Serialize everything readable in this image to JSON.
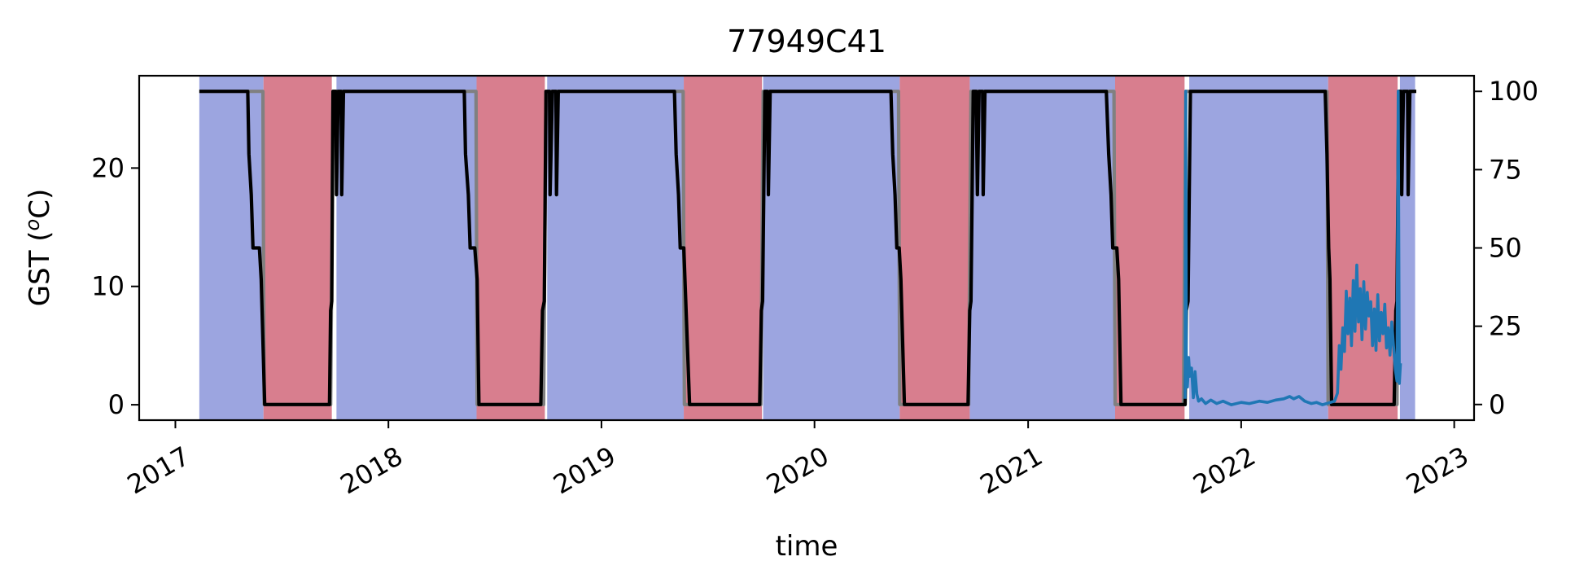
{
  "chart_data": {
    "type": "line",
    "title": "77949C41",
    "xlabel": "time",
    "ylabel_left": "GST (",
    "ylabel_left_super": "o",
    "ylabel_left_tail": "C)",
    "ylabel_right": "",
    "x_ticks": [
      "2017",
      "2018",
      "2019",
      "2020",
      "2021",
      "2022",
      "2023"
    ],
    "x_tick_dates": [
      "2017-01-01",
      "2018-01-01",
      "2019-01-01",
      "2020-01-01",
      "2021-01-01",
      "2022-01-01",
      "2023-01-01"
    ],
    "xlim": [
      "2016-10-31",
      "2023-02-04"
    ],
    "y_left_ticks": [
      "0",
      "10",
      "20"
    ],
    "y_left_tick_values": [
      0,
      10,
      20
    ],
    "ylim_left": [
      -1.3,
      27.8
    ],
    "y_right_ticks": [
      "0",
      "25",
      "50",
      "75",
      "100"
    ],
    "y_right_tick_values": [
      0,
      25,
      50,
      75,
      100
    ],
    "ylim_right": [
      -5,
      105
    ],
    "grid": false,
    "colors": {
      "season_blue": "#9ca5e0",
      "season_red": "#d87e8e",
      "black_series": "#000000",
      "grey_series": "#808080",
      "blue_series": "#1f77b4"
    },
    "shaded_periods": [
      {
        "start": "2017-02-11",
        "end": "2017-06-01",
        "kind": "blue"
      },
      {
        "start": "2017-06-01",
        "end": "2017-09-26",
        "kind": "red"
      },
      {
        "start": "2017-10-04",
        "end": "2018-06-01",
        "kind": "blue"
      },
      {
        "start": "2018-06-01",
        "end": "2018-09-26",
        "kind": "red"
      },
      {
        "start": "2018-09-30",
        "end": "2019-05-22",
        "kind": "blue"
      },
      {
        "start": "2019-05-22",
        "end": "2019-10-03",
        "kind": "red"
      },
      {
        "start": "2019-10-05",
        "end": "2020-05-26",
        "kind": "blue"
      },
      {
        "start": "2020-05-26",
        "end": "2020-09-23",
        "kind": "red"
      },
      {
        "start": "2020-09-23",
        "end": "2021-05-30",
        "kind": "blue"
      },
      {
        "start": "2021-05-30",
        "end": "2021-09-26",
        "kind": "red"
      },
      {
        "start": "2021-10-04",
        "end": "2022-05-30",
        "kind": "blue"
      },
      {
        "start": "2022-05-30",
        "end": "2022-09-26",
        "kind": "red"
      },
      {
        "start": "2022-09-30",
        "end": "2022-10-26",
        "kind": "blue"
      }
    ],
    "series": [
      {
        "axis": "right",
        "color": "#808080",
        "points": [
          [
            "2017-02-11",
            100
          ],
          [
            "2017-05-31",
            100
          ],
          [
            "2017-06-02",
            0
          ],
          [
            "2017-09-24",
            0
          ],
          [
            "2017-09-28",
            100
          ],
          [
            "2018-05-31",
            100
          ],
          [
            "2018-06-02",
            0
          ],
          [
            "2018-09-24",
            0
          ],
          [
            "2018-09-28",
            100
          ],
          [
            "2019-05-21",
            100
          ],
          [
            "2019-05-23",
            0
          ],
          [
            "2019-10-01",
            0
          ],
          [
            "2019-10-05",
            100
          ],
          [
            "2020-05-24",
            100
          ],
          [
            "2020-05-26",
            0
          ],
          [
            "2020-09-21",
            0
          ],
          [
            "2020-09-25",
            100
          ],
          [
            "2021-05-28",
            100
          ],
          [
            "2021-05-30",
            0
          ],
          [
            "2021-09-24",
            0
          ],
          [
            "2021-09-28",
            100
          ],
          [
            "2022-05-28",
            100
          ],
          [
            "2022-05-30",
            0
          ],
          [
            "2022-09-25",
            0
          ],
          [
            "2022-09-28",
            100
          ],
          [
            "2022-10-26",
            100
          ]
        ]
      },
      {
        "axis": "right",
        "color": "#000000",
        "points": [
          [
            "2017-02-11",
            100
          ],
          [
            "2017-05-05",
            100
          ],
          [
            "2017-05-07",
            80
          ],
          [
            "2017-05-11",
            67
          ],
          [
            "2017-05-14",
            50
          ],
          [
            "2017-05-25",
            50
          ],
          [
            "2017-05-28",
            40
          ],
          [
            "2017-06-03",
            0
          ],
          [
            "2017-09-22",
            0
          ],
          [
            "2017-09-24",
            30
          ],
          [
            "2017-09-26",
            33
          ],
          [
            "2017-09-28",
            100
          ],
          [
            "2017-10-03",
            100
          ],
          [
            "2017-10-04",
            67
          ],
          [
            "2017-10-07",
            100
          ],
          [
            "2017-10-12",
            100
          ],
          [
            "2017-10-13",
            67
          ],
          [
            "2017-10-16",
            100
          ],
          [
            "2018-05-11",
            100
          ],
          [
            "2018-05-13",
            80
          ],
          [
            "2018-05-18",
            67
          ],
          [
            "2018-05-21",
            50
          ],
          [
            "2018-05-29",
            50
          ],
          [
            "2018-06-02",
            40
          ],
          [
            "2018-06-05",
            0
          ],
          [
            "2018-09-19",
            0
          ],
          [
            "2018-09-22",
            30
          ],
          [
            "2018-09-25",
            33
          ],
          [
            "2018-09-28",
            100
          ],
          [
            "2018-10-04",
            100
          ],
          [
            "2018-10-05",
            67
          ],
          [
            "2018-10-09",
            100
          ],
          [
            "2018-10-15",
            100
          ],
          [
            "2018-10-16",
            67
          ],
          [
            "2018-10-19",
            100
          ],
          [
            "2019-05-06",
            100
          ],
          [
            "2019-05-09",
            80
          ],
          [
            "2019-05-13",
            67
          ],
          [
            "2019-05-16",
            50
          ],
          [
            "2019-05-22",
            50
          ],
          [
            "2019-05-24",
            40
          ],
          [
            "2019-06-01",
            0
          ],
          [
            "2019-09-29",
            0
          ],
          [
            "2019-10-02",
            30
          ],
          [
            "2019-10-04",
            33
          ],
          [
            "2019-10-08",
            100
          ],
          [
            "2019-10-12",
            100
          ],
          [
            "2019-10-14",
            67
          ],
          [
            "2019-10-17",
            100
          ],
          [
            "2020-05-11",
            100
          ],
          [
            "2020-05-14",
            80
          ],
          [
            "2020-05-18",
            67
          ],
          [
            "2020-05-21",
            50
          ],
          [
            "2020-05-25",
            50
          ],
          [
            "2020-05-28",
            40
          ],
          [
            "2020-06-03",
            0
          ],
          [
            "2020-09-20",
            0
          ],
          [
            "2020-09-23",
            30
          ],
          [
            "2020-09-25",
            33
          ],
          [
            "2020-09-29",
            100
          ],
          [
            "2020-10-04",
            100
          ],
          [
            "2020-10-06",
            67
          ],
          [
            "2020-10-09",
            100
          ],
          [
            "2020-10-15",
            100
          ],
          [
            "2020-10-16",
            67
          ],
          [
            "2020-10-19",
            100
          ],
          [
            "2021-05-15",
            100
          ],
          [
            "2021-05-19",
            80
          ],
          [
            "2021-05-23",
            67
          ],
          [
            "2021-05-26",
            50
          ],
          [
            "2021-06-02",
            50
          ],
          [
            "2021-06-05",
            40
          ],
          [
            "2021-06-09",
            0
          ],
          [
            "2021-09-27",
            0
          ],
          [
            "2021-09-29",
            30
          ],
          [
            "2021-10-02",
            33
          ],
          [
            "2021-10-06",
            100
          ],
          [
            "2022-05-25",
            100
          ],
          [
            "2022-05-28",
            80
          ],
          [
            "2022-05-31",
            50
          ],
          [
            "2022-06-02",
            40
          ],
          [
            "2022-06-05",
            0
          ],
          [
            "2022-09-20",
            0
          ],
          [
            "2022-09-23",
            30
          ],
          [
            "2022-09-25",
            33
          ],
          [
            "2022-09-28",
            100
          ],
          [
            "2022-10-02",
            100
          ],
          [
            "2022-10-03",
            67
          ],
          [
            "2022-10-06",
            100
          ],
          [
            "2022-10-13",
            100
          ],
          [
            "2022-10-14",
            67
          ],
          [
            "2022-10-17",
            100
          ],
          [
            "2022-10-28",
            100
          ]
        ]
      },
      {
        "axis": "left",
        "color": "#1f77b4",
        "points": [
          [
            "2021-09-27",
            0.5
          ],
          [
            "2021-09-28",
            26.5
          ],
          [
            "2021-09-29",
            4.2
          ],
          [
            "2021-10-01",
            1.5
          ],
          [
            "2021-10-03",
            4.0
          ],
          [
            "2021-10-05",
            2.4
          ],
          [
            "2021-10-08",
            3.1
          ],
          [
            "2021-10-11",
            0.6
          ],
          [
            "2021-10-14",
            2.8
          ],
          [
            "2021-10-17",
            0.9
          ],
          [
            "2021-10-20",
            0.3
          ],
          [
            "2021-10-25",
            0.5
          ],
          [
            "2021-11-01",
            0.1
          ],
          [
            "2021-11-10",
            0.4
          ],
          [
            "2021-11-20",
            0.1
          ],
          [
            "2021-12-01",
            0.3
          ],
          [
            "2021-12-15",
            0.0
          ],
          [
            "2022-01-01",
            0.2
          ],
          [
            "2022-01-15",
            0.1
          ],
          [
            "2022-02-01",
            0.3
          ],
          [
            "2022-02-15",
            0.2
          ],
          [
            "2022-03-01",
            0.4
          ],
          [
            "2022-03-15",
            0.5
          ],
          [
            "2022-03-25",
            0.7
          ],
          [
            "2022-04-01",
            0.5
          ],
          [
            "2022-04-10",
            0.7
          ],
          [
            "2022-04-20",
            0.3
          ],
          [
            "2022-05-01",
            0.1
          ],
          [
            "2022-05-10",
            0.2
          ],
          [
            "2022-05-20",
            0.0
          ],
          [
            "2022-06-10",
            0.3
          ],
          [
            "2022-06-15",
            1.0
          ],
          [
            "2022-06-18",
            5.0
          ],
          [
            "2022-06-21",
            3.0
          ],
          [
            "2022-06-24",
            6.5
          ],
          [
            "2022-06-27",
            4.5
          ],
          [
            "2022-06-30",
            9.6
          ],
          [
            "2022-07-03",
            6.0
          ],
          [
            "2022-07-06",
            9.0
          ],
          [
            "2022-07-09",
            5.0
          ],
          [
            "2022-07-12",
            10.5
          ],
          [
            "2022-07-15",
            6.2
          ],
          [
            "2022-07-18",
            11.8
          ],
          [
            "2022-07-21",
            7.0
          ],
          [
            "2022-07-24",
            9.8
          ],
          [
            "2022-07-27",
            5.5
          ],
          [
            "2022-07-30",
            10.4
          ],
          [
            "2022-08-02",
            6.4
          ],
          [
            "2022-08-05",
            9.5
          ],
          [
            "2022-08-08",
            7.5
          ],
          [
            "2022-08-11",
            8.7
          ],
          [
            "2022-08-14",
            5.0
          ],
          [
            "2022-08-17",
            8.1
          ],
          [
            "2022-08-20",
            4.6
          ],
          [
            "2022-08-23",
            9.3
          ],
          [
            "2022-08-26",
            5.4
          ],
          [
            "2022-08-29",
            7.8
          ],
          [
            "2022-09-01",
            6.0
          ],
          [
            "2022-09-04",
            8.5
          ],
          [
            "2022-09-07",
            4.8
          ],
          [
            "2022-09-10",
            6.5
          ],
          [
            "2022-09-13",
            4.2
          ],
          [
            "2022-09-16",
            7.0
          ],
          [
            "2022-09-19",
            5.0
          ],
          [
            "2022-09-22",
            3.0
          ],
          [
            "2022-09-25",
            2.0
          ],
          [
            "2022-09-27",
            26.5
          ],
          [
            "2022-09-29",
            1.8
          ],
          [
            "2022-10-01",
            3.5
          ]
        ]
      }
    ]
  }
}
